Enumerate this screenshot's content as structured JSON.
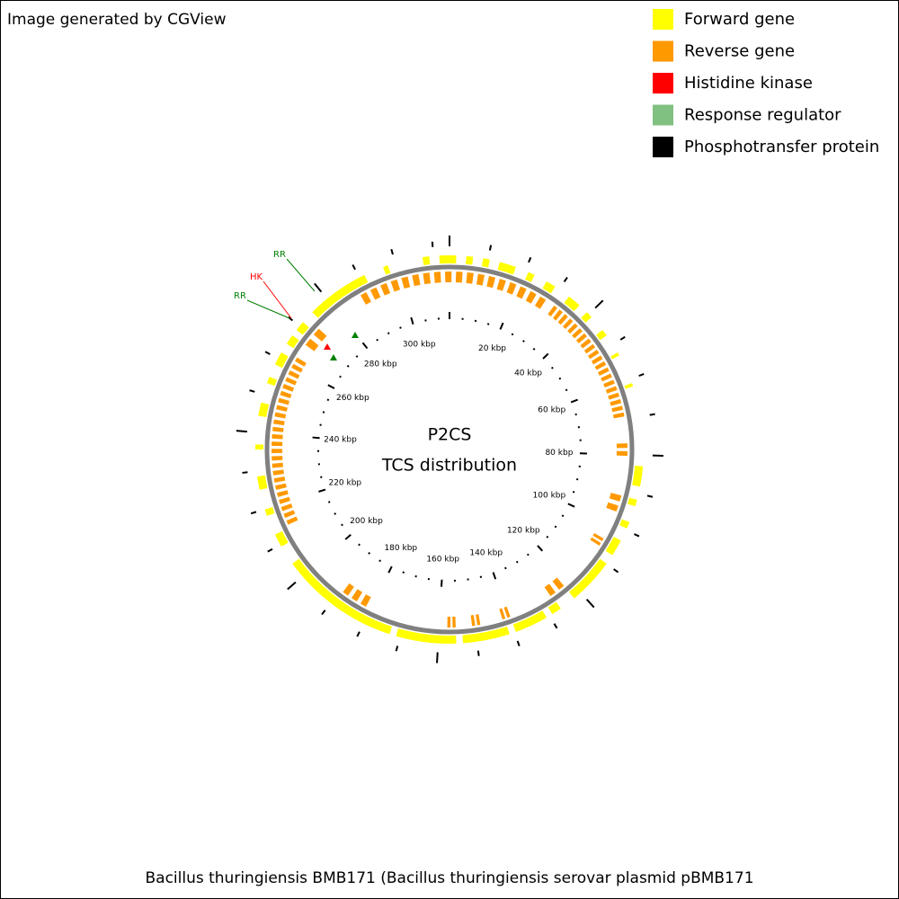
{
  "header": {
    "credit": "Image generated by CGView"
  },
  "legend": [
    {
      "label": "Forward gene",
      "color": "#ffff00"
    },
    {
      "label": "Reverse gene",
      "color": "#ff9900"
    },
    {
      "label": "Histidine kinase",
      "color": "#ff0000"
    },
    {
      "label": "Response regulator",
      "color": "#80c080"
    },
    {
      "label": "Phosphotransfer protein",
      "color": "#000000"
    }
  ],
  "center": {
    "title": "P2CS",
    "subtitle": "TCS distribution"
  },
  "ruler": {
    "labels": [
      "20 kbp",
      "40 kbp",
      "60 kbp",
      "80 kbp",
      "100 kbp",
      "120 kbp",
      "140 kbp",
      "160 kbp",
      "180 kbp",
      "200 kbp",
      "220 kbp",
      "240 kbp",
      "260 kbp",
      "280 kbp",
      "300 kbp"
    ]
  },
  "features": [
    {
      "label": "RR",
      "color": "#008000"
    },
    {
      "label": "HK",
      "color": "#ff0000"
    },
    {
      "label": "RR",
      "color": "#008000"
    }
  ],
  "footer": {
    "caption": "Bacillus thuringiensis BMB171 (Bacillus thuringiensis serovar plasmid pBMB171"
  }
}
